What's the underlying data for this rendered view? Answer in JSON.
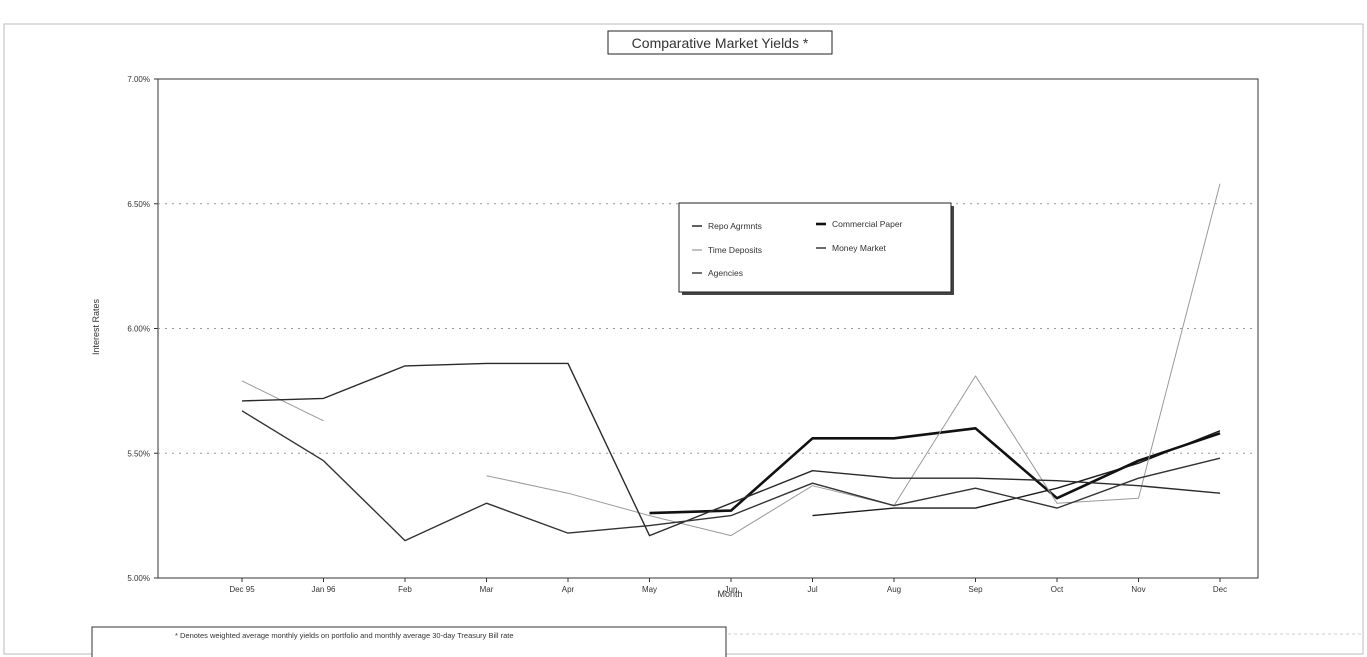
{
  "chart_data": {
    "type": "line",
    "title": "Comparative  Market Yields *",
    "xlabel": "Month",
    "ylabel": "Interest Rates",
    "categories": [
      "Dec 95",
      "Jan 96",
      "Feb",
      "Mar",
      "Apr",
      "May",
      "Jun",
      "Jul",
      "Aug",
      "Sep",
      "Oct",
      "Nov",
      "Dec"
    ],
    "y_ticks": [
      "7.00%",
      "6.50%",
      "6.00%",
      "5.50%",
      "5.00%"
    ],
    "ylim": [
      5.0,
      7.0
    ],
    "grid": true,
    "legend_position": "center",
    "series": [
      {
        "name": "Repo Agrmnts",
        "color": "#1a1a1a",
        "dash": "",
        "width": 1.4,
        "values": [
          null,
          null,
          null,
          null,
          null,
          null,
          null,
          5.25,
          5.28,
          5.28,
          5.36,
          5.46,
          5.59
        ]
      },
      {
        "name": "Commercial Paper",
        "color": "#111111",
        "dash": "",
        "width": 2.6,
        "values": [
          null,
          null,
          null,
          null,
          null,
          5.26,
          5.27,
          5.56,
          5.56,
          5.6,
          5.32,
          5.47,
          5.58
        ]
      },
      {
        "name": "Time Deposits",
        "color": "#9a9a9a",
        "dash": "",
        "width": 1.0,
        "values": [
          5.79,
          5.63,
          null,
          5.41,
          5.34,
          5.25,
          5.17,
          5.37,
          5.29,
          5.81,
          5.3,
          5.32,
          6.58
        ]
      },
      {
        "name": "Money Market",
        "color": "#2a2a2a",
        "dash": "",
        "width": 1.4,
        "values": [
          5.71,
          5.72,
          5.85,
          5.86,
          5.86,
          5.17,
          5.3,
          5.43,
          5.4,
          5.4,
          5.39,
          5.37,
          5.34
        ]
      },
      {
        "name": "Agencies",
        "color": "#333333",
        "dash": "",
        "width": 1.4,
        "values": [
          5.67,
          5.47,
          5.15,
          5.3,
          5.18,
          5.21,
          5.25,
          5.38,
          5.29,
          5.36,
          5.28,
          5.4,
          5.48
        ]
      }
    ],
    "footnote": "* Denotes weighted average monthly yields on portfolio and monthly average 30-day Treasury Bill rate"
  }
}
